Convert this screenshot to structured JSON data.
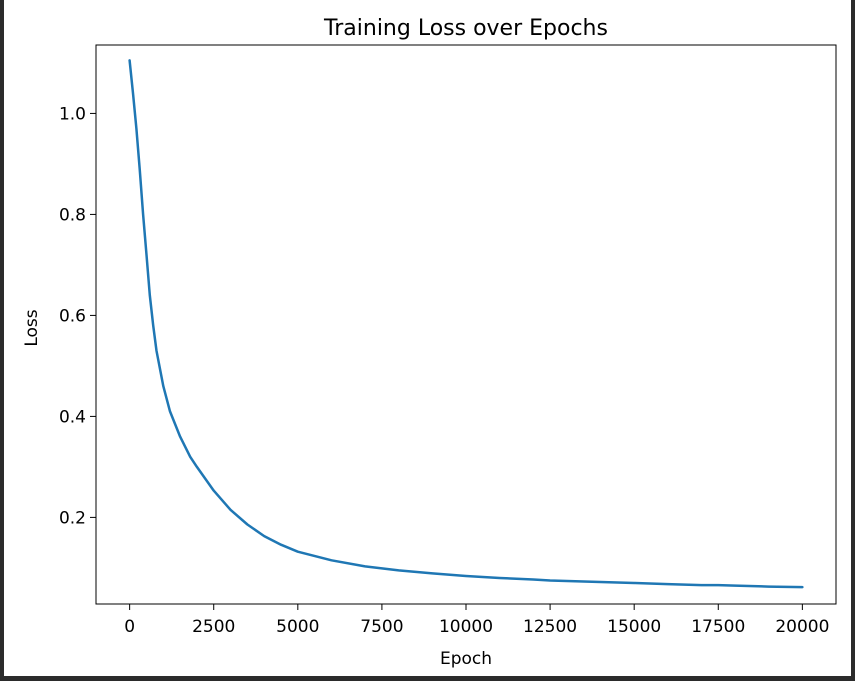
{
  "chart_data": {
    "type": "line",
    "title": "Training Loss over Epochs",
    "xlabel": "Epoch",
    "ylabel": "Loss",
    "xlim": [
      -1000,
      21000
    ],
    "ylim": [
      0.0285,
      1.1355
    ],
    "grid": false,
    "legend": "none",
    "x_ticks": [
      0,
      2500,
      5000,
      7500,
      10000,
      12500,
      15000,
      17500,
      20000
    ],
    "y_ticks": [
      0.2,
      0.4,
      0.6,
      0.8,
      1.0
    ],
    "x_tick_labels": [
      "0",
      "2500",
      "5000",
      "7500",
      "10000",
      "12500",
      "15000",
      "17500",
      "20000"
    ],
    "y_tick_labels": [
      "0.2",
      "0.4",
      "0.6",
      "0.8",
      "1.0"
    ],
    "series": [
      {
        "color": "#1f77b4",
        "x": [
          0,
          100,
          200,
          300,
          400,
          500,
          600,
          700,
          800,
          1000,
          1200,
          1500,
          1800,
          2000,
          2500,
          3000,
          3500,
          4000,
          4500,
          5000,
          6000,
          7000,
          7500,
          8000,
          9000,
          10000,
          11000,
          12000,
          12500,
          13000,
          14000,
          15000,
          16000,
          17000,
          17500,
          18000,
          19000,
          20000
        ],
        "y": [
          1.105,
          1.04,
          0.97,
          0.89,
          0.8,
          0.72,
          0.64,
          0.58,
          0.53,
          0.46,
          0.41,
          0.36,
          0.32,
          0.3,
          0.253,
          0.215,
          0.186,
          0.163,
          0.146,
          0.132,
          0.115,
          0.103,
          0.099,
          0.095,
          0.089,
          0.084,
          0.08,
          0.077,
          0.075,
          0.074,
          0.072,
          0.07,
          0.068,
          0.066,
          0.066,
          0.065,
          0.063,
          0.062
        ]
      }
    ]
  }
}
